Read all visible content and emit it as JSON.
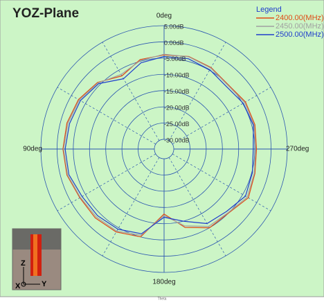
{
  "chart_data": {
    "type": "polar",
    "title": "YOZ-Plane",
    "x_label": "Theta",
    "legend_title": "Legend",
    "legend": "upper right",
    "rlim": [
      -33,
      5
    ],
    "rticks": [
      {
        "value": 5,
        "label": "5.00dB"
      },
      {
        "value": 0,
        "label": "0.00dB"
      },
      {
        "value": -5,
        "label": "-5.00dB"
      },
      {
        "value": -10,
        "label": "-10.00dB"
      },
      {
        "value": -15,
        "label": "-15.00dB"
      },
      {
        "value": -20,
        "label": "-20.00dB"
      },
      {
        "value": -25,
        "label": "-25.00dB"
      },
      {
        "value": -30,
        "label": "-30.00dB"
      }
    ],
    "thetaticks": [
      {
        "value": 0,
        "label": "0deg"
      },
      {
        "value": 90,
        "label": "90deg"
      },
      {
        "value": 180,
        "label": "180deg"
      },
      {
        "value": 270,
        "label": "270deg"
      }
    ],
    "theta_minor_grid": [
      30,
      60,
      120,
      150,
      210,
      240,
      300,
      330
    ],
    "theta": [
      0,
      15,
      30,
      45,
      60,
      75,
      90,
      105,
      120,
      135,
      150,
      165,
      180,
      195,
      210,
      225,
      240,
      255,
      270,
      285,
      300,
      315,
      330,
      345
    ],
    "series": [
      {
        "name": "2400.00(MHz)",
        "color": "#e04a14",
        "values": [
          -4,
          -4.5,
          -7,
          -4,
          -2.5,
          -2,
          -1.8,
          -2,
          -3,
          -3,
          -3.5,
          -5,
          -13,
          -8,
          -5,
          -5,
          -3,
          -4,
          -4.5,
          -4,
          -4,
          -5,
          -4,
          -3.5
        ]
      },
      {
        "name": "2450.00(MHz)",
        "color": "#a0a0a0",
        "values": [
          -3.8,
          -4.8,
          -6.5,
          -4.2,
          -2.8,
          -2.3,
          -2,
          -2.2,
          -3.2,
          -3.4,
          -3.8,
          -5.5,
          -12.5,
          -8.5,
          -5.5,
          -5.2,
          -3.4,
          -4.2,
          -4.8,
          -4.3,
          -4.3,
          -5.2,
          -4.2,
          -3.6
        ]
      },
      {
        "name": "2500.00(MHz)",
        "color": "#1e3ccc",
        "values": [
          -4.5,
          -5.5,
          -8,
          -4.5,
          -3.2,
          -2.8,
          -2.5,
          -2.6,
          -3.8,
          -4,
          -4.5,
          -6,
          -12,
          -10,
          -6.5,
          -5.8,
          -4,
          -4.8,
          -5.5,
          -4.5,
          -4.8,
          -5.8,
          -4.8,
          -4.2
        ]
      }
    ],
    "inset_labels": [
      "Z",
      "X",
      "Y"
    ]
  }
}
